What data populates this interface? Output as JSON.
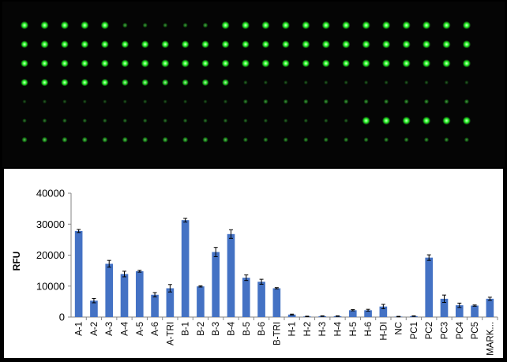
{
  "microarray_image": {
    "spot_color": "#2bff2b",
    "rows": [
      [
        1,
        1,
        1,
        1,
        1,
        0.35,
        0.3,
        0.28,
        0.3,
        0.35,
        1,
        1,
        1,
        1,
        1,
        1,
        1,
        1,
        1,
        1,
        1,
        1,
        1
      ],
      [
        0.85,
        1,
        0.95,
        0.95,
        0.95,
        0.9,
        0.95,
        0.95,
        0.95,
        0.95,
        0.95,
        0.9,
        0.9,
        0.9,
        1,
        1,
        1,
        1,
        1,
        1,
        1,
        1,
        1
      ],
      [
        0.9,
        0.9,
        0.95,
        0.9,
        0.95,
        0.95,
        1,
        1,
        1,
        0.9,
        0.95,
        1,
        1,
        0.95,
        0.9,
        0.95,
        0.9,
        1,
        1,
        1,
        1,
        1,
        1
      ],
      [
        0.85,
        0.85,
        0.85,
        0.85,
        0.85,
        0.75,
        0.75,
        0.7,
        0.7,
        0.75,
        0.75,
        0.15,
        0.12,
        0.12,
        0.12,
        0.12,
        0.12,
        0.12,
        0.12,
        0.12,
        0.12,
        0.12,
        0.12
      ],
      [
        0.1,
        0.12,
        0.12,
        0.1,
        0.1,
        0.1,
        0.12,
        0.1,
        0.1,
        0.1,
        0.12,
        0.25,
        0.3,
        0.28,
        0.3,
        0.3,
        0.3,
        0.3,
        0.3,
        0.3,
        0.3,
        0.3,
        0.3
      ],
      [
        0.2,
        0.22,
        0.22,
        0.2,
        0.2,
        0.2,
        0.2,
        0.2,
        0.2,
        0.2,
        0.2,
        0.18,
        0.15,
        0.15,
        0.15,
        0.15,
        0.15,
        1,
        1,
        1,
        1,
        1,
        1
      ],
      [
        0.45,
        0.5,
        0.45,
        0.45,
        0.45,
        0.45,
        0.45,
        0.45,
        0.45,
        0.45,
        0.45,
        0.3,
        0.3,
        0.3,
        0.3,
        0.3,
        0.3,
        0.3,
        0.3,
        0.3,
        0.3,
        0.3,
        0.3
      ]
    ]
  },
  "chart_data": {
    "type": "bar",
    "ylabel": "RFU",
    "xlabel": "",
    "ylim": [
      0,
      40000
    ],
    "yticks": [
      0,
      10000,
      20000,
      30000,
      40000
    ],
    "bar_color": "#4472c4",
    "grid": false,
    "categories": [
      "A-1",
      "A-2",
      "A-3",
      "A-4",
      "A-5",
      "A-6",
      "A-TRI",
      "B-1",
      "B-2",
      "B-3",
      "B-4",
      "B-5",
      "B-6",
      "B-TRI",
      "H-1",
      "H-2",
      "H-3",
      "H-4",
      "H-5",
      "H-6",
      "H-DI",
      "NC",
      "PC1",
      "PC2",
      "PC3",
      "PC4",
      "PC5",
      "MARK..."
    ],
    "values": [
      27800,
      5300,
      17200,
      13900,
      14800,
      7200,
      9300,
      31300,
      9900,
      21000,
      26800,
      12700,
      11400,
      9300,
      800,
      200,
      300,
      300,
      2200,
      2200,
      3400,
      150,
      300,
      19200,
      5900,
      3800,
      3700,
      5900
    ],
    "errors": [
      500,
      700,
      1100,
      900,
      300,
      700,
      1200,
      600,
      200,
      1500,
      1400,
      900,
      800,
      200,
      150,
      80,
      80,
      80,
      200,
      300,
      700,
      80,
      80,
      900,
      1200,
      700,
      200,
      500
    ]
  }
}
